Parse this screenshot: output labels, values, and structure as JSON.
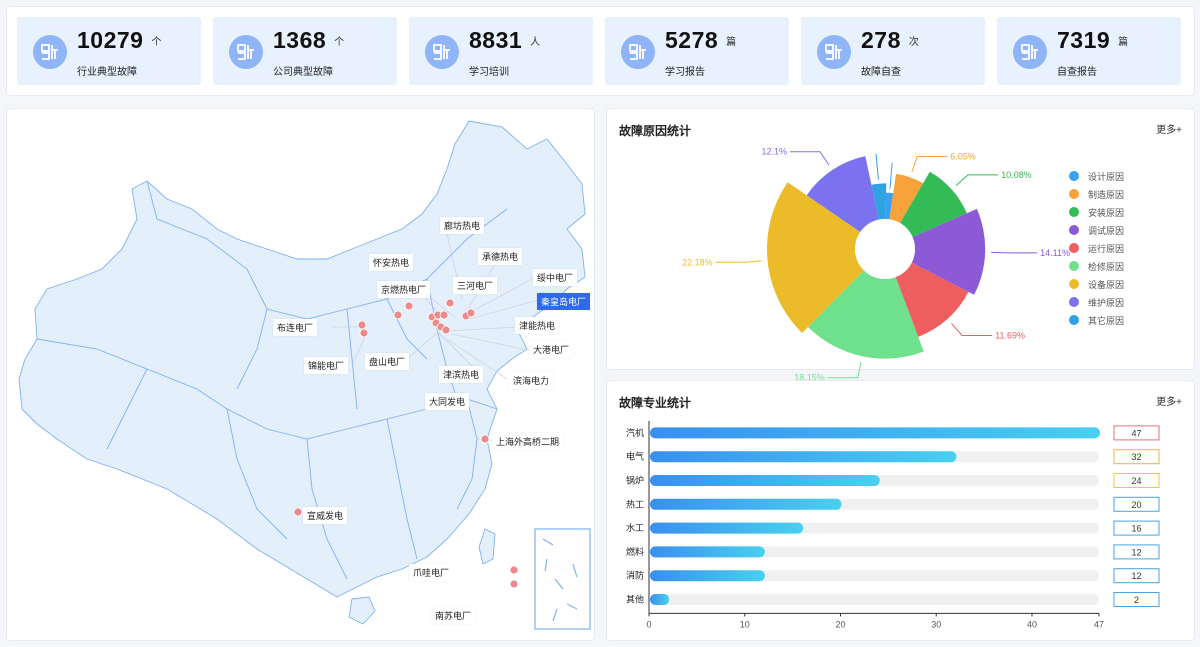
{
  "stats": [
    {
      "value": "10279",
      "unit": "个",
      "label": "行业典型故障"
    },
    {
      "value": "1368",
      "unit": "个",
      "label": "公司典型故障"
    },
    {
      "value": "8831",
      "unit": "人",
      "label": "学习培训"
    },
    {
      "value": "5278",
      "unit": "篇",
      "label": "学习报告"
    },
    {
      "value": "278",
      "unit": "次",
      "label": "故障自查"
    },
    {
      "value": "7319",
      "unit": "篇",
      "label": "自查报告"
    }
  ],
  "map": {
    "labels": [
      "廊坊热电",
      "承德热电",
      "怀安热电",
      "三河电厂",
      "绥中电厂",
      "京燃热电厂",
      "秦皇岛电厂",
      "布连电厂",
      "津能热电",
      "大港电厂",
      "锦能电厂",
      "盘山电厂",
      "津滨热电",
      "滨海电力",
      "大同发电",
      "上海外高桥二期",
      "宣威发电",
      "爪哇电厂",
      "南苏电厂"
    ],
    "active": "秦皇岛电厂"
  },
  "pie": {
    "title": "故障原因统计",
    "more": "更多+",
    "colors": {
      "设计原因": "#3aa0f0",
      "制造原因": "#f7a23a",
      "安装原因": "#33bb55",
      "调试原因": "#8c5ad6",
      "运行原因": "#ef5e5e",
      "检修原因": "#6fe08c",
      "设备原因": "#ecbb2a",
      "维护原因": "#7a72ee",
      "其它原因": "#2fa2e6"
    }
  },
  "bar": {
    "title": "故障专业统计",
    "more": "更多+"
  },
  "chart_data": [
    {
      "type": "pie",
      "title": "故障原因统计",
      "legend_position": "right",
      "categories": [
        "设计原因",
        "制造原因",
        "安装原因",
        "调试原因",
        "运行原因",
        "检修原因",
        "设备原因",
        "维护原因",
        "其它原因"
      ],
      "values": [
        2.0,
        6.05,
        10.08,
        14.11,
        11.69,
        18.15,
        22.18,
        12.1,
        3.64
      ],
      "value_labels": [
        "",
        "6.05%",
        "10.08%",
        "14.11%",
        "11.69%",
        "18.15%",
        "22.18%",
        "12.1%",
        ""
      ]
    },
    {
      "type": "bar",
      "title": "故障专业统计",
      "orientation": "horizontal",
      "categories": [
        "汽机",
        "电气",
        "锅炉",
        "热工",
        "水工",
        "燃料",
        "消防",
        "其他"
      ],
      "values": [
        47,
        32,
        24,
        20,
        16,
        12,
        12,
        2
      ],
      "value_colors": [
        "#e6727a",
        "#efad52",
        "#efc64a",
        "#4aa3e0",
        "#4aa3e0",
        "#4aa3e0",
        "#4aa3e0",
        "#4aa3e0"
      ],
      "xlim": [
        0,
        47
      ],
      "xticks": [
        0,
        10,
        20,
        30,
        40,
        47
      ]
    }
  ]
}
